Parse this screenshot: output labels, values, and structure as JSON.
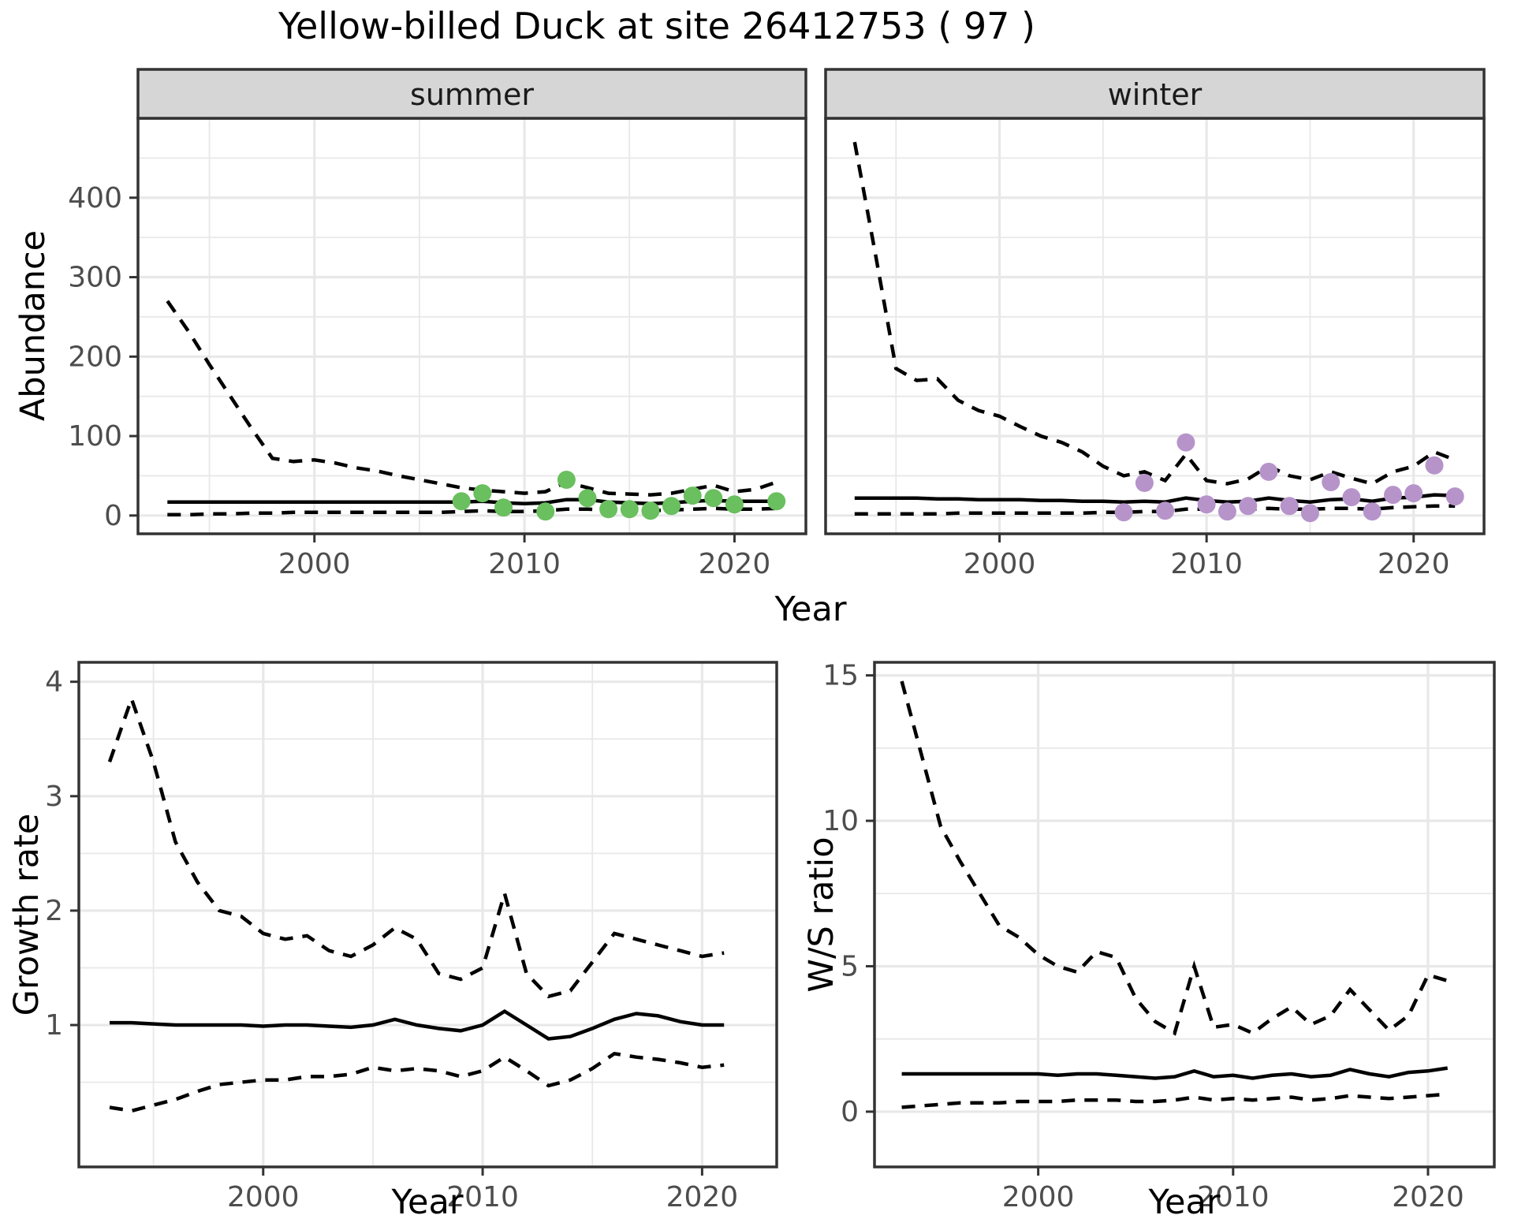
{
  "title": "Yellow-billed Duck at site 26412753 ( 97 )",
  "labels": {
    "top_ylabel": "Abundance",
    "top_xlabel": "Year",
    "growth_ylabel": "Growth rate",
    "growth_xlabel": "Year",
    "ws_ylabel": "W/S ratio",
    "ws_xlabel": "Year"
  },
  "colors": {
    "summer_points": "#6abf5e",
    "winter_points": "#b694ca",
    "line": "#000000",
    "grid": "#e8e8e8",
    "strip_bg": "#d6d6d6",
    "border": "#333333",
    "tick_text": "#4d4d4d",
    "facet_text": "#1a1a1a"
  },
  "chart_data": [
    {
      "id": "abundance_summer",
      "type": "line",
      "facet_label": "summer",
      "ylabel": "Abundance",
      "xlabel": "Year",
      "x_years": [
        1993,
        1994,
        1995,
        1996,
        1997,
        1998,
        1999,
        2000,
        2001,
        2002,
        2003,
        2004,
        2005,
        2006,
        2007,
        2008,
        2009,
        2010,
        2011,
        2012,
        2013,
        2014,
        2015,
        2016,
        2017,
        2018,
        2019,
        2020,
        2021,
        2022
      ],
      "series": [
        {
          "name": "upper_ci",
          "style": "dashed",
          "values": [
            270,
            232,
            190,
            150,
            110,
            72,
            68,
            70,
            66,
            60,
            56,
            50,
            45,
            40,
            35,
            32,
            30,
            28,
            30,
            42,
            35,
            28,
            27,
            26,
            28,
            33,
            38,
            30,
            33,
            42
          ]
        },
        {
          "name": "median",
          "style": "solid",
          "values": [
            17,
            17,
            17,
            17,
            17,
            17,
            17,
            17,
            17,
            17,
            17,
            17,
            17,
            17,
            17,
            18,
            16,
            15,
            16,
            20,
            20,
            17,
            16,
            15,
            16,
            18,
            19,
            18,
            18,
            18
          ]
        },
        {
          "name": "lower_ci",
          "style": "dashed",
          "values": [
            1,
            1,
            2,
            2,
            3,
            3,
            4,
            4,
            4,
            4,
            4,
            4,
            4,
            4,
            5,
            6,
            5,
            5,
            6,
            8,
            8,
            7,
            6,
            6,
            7,
            8,
            9,
            8,
            8,
            9
          ]
        }
      ],
      "observed_points": {
        "color": "#6abf5e",
        "x": [
          2007,
          2008,
          2009,
          2011,
          2012,
          2013,
          2014,
          2015,
          2016,
          2017,
          2018,
          2019,
          2020,
          2022
        ],
        "y": [
          18,
          28,
          10,
          5,
          45,
          22,
          8,
          8,
          6,
          12,
          25,
          22,
          14,
          18
        ]
      },
      "xlim": [
        1991.6,
        2023.4
      ],
      "ylim": [
        -23,
        500
      ],
      "xticks": [
        2000,
        2010,
        2020
      ],
      "yticks": [
        0,
        100,
        200,
        300,
        400
      ],
      "xminor": [
        1995,
        2005,
        2015
      ],
      "yminor": [
        50,
        150,
        250,
        350,
        450
      ],
      "grid": true
    },
    {
      "id": "abundance_winter",
      "type": "line",
      "facet_label": "winter",
      "ylabel": "Abundance",
      "xlabel": "Year",
      "x_years": [
        1993,
        1994,
        1995,
        1996,
        1997,
        1998,
        1999,
        2000,
        2001,
        2002,
        2003,
        2004,
        2005,
        2006,
        2007,
        2008,
        2009,
        2010,
        2011,
        2012,
        2013,
        2014,
        2015,
        2016,
        2017,
        2018,
        2019,
        2020,
        2021,
        2022
      ],
      "series": [
        {
          "name": "upper_ci",
          "style": "dashed",
          "values": [
            470,
            330,
            185,
            170,
            172,
            145,
            132,
            125,
            112,
            100,
            92,
            80,
            62,
            50,
            55,
            44,
            77,
            44,
            40,
            46,
            62,
            50,
            45,
            55,
            47,
            40,
            55,
            62,
            80,
            70
          ]
        },
        {
          "name": "median",
          "style": "solid",
          "values": [
            22,
            22,
            22,
            22,
            21,
            21,
            20,
            20,
            20,
            19,
            19,
            18,
            18,
            17,
            18,
            17,
            22,
            19,
            17,
            18,
            22,
            19,
            17,
            20,
            21,
            18,
            22,
            23,
            26,
            25
          ]
        },
        {
          "name": "lower_ci",
          "style": "dashed",
          "values": [
            2,
            2,
            2,
            2,
            2,
            3,
            3,
            3,
            3,
            3,
            3,
            3,
            4,
            4,
            5,
            5,
            8,
            8,
            7,
            8,
            9,
            8,
            8,
            9,
            9,
            8,
            10,
            11,
            12,
            12
          ]
        }
      ],
      "observed_points": {
        "color": "#b694ca",
        "x": [
          2006,
          2007,
          2008,
          2009,
          2010,
          2011,
          2012,
          2013,
          2014,
          2015,
          2016,
          2017,
          2018,
          2019,
          2020,
          2021,
          2022
        ],
        "y": [
          4,
          41,
          6,
          92,
          14,
          5,
          12,
          55,
          12,
          3,
          42,
          23,
          5,
          26,
          28,
          63,
          24
        ]
      },
      "xlim": [
        1991.6,
        2023.4
      ],
      "ylim": [
        -23,
        500
      ],
      "xticks": [
        2000,
        2010,
        2020
      ],
      "yticks": [
        0,
        100,
        200,
        300,
        400
      ],
      "xminor": [
        1995,
        2005,
        2015
      ],
      "yminor": [
        50,
        150,
        250,
        350,
        450
      ],
      "grid": true
    },
    {
      "id": "growth_rate",
      "type": "line",
      "facet_label": null,
      "ylabel": "Growth rate",
      "xlabel": "Year",
      "x_years": [
        1993,
        1994,
        1995,
        1996,
        1997,
        1998,
        1999,
        2000,
        2001,
        2002,
        2003,
        2004,
        2005,
        2006,
        2007,
        2008,
        2009,
        2010,
        2011,
        2012,
        2013,
        2014,
        2015,
        2016,
        2017,
        2018,
        2019,
        2020,
        2021
      ],
      "series": [
        {
          "name": "upper_ci",
          "style": "dashed",
          "values": [
            3.3,
            3.85,
            3.3,
            2.6,
            2.25,
            2.0,
            1.95,
            1.8,
            1.75,
            1.78,
            1.65,
            1.6,
            1.7,
            1.85,
            1.75,
            1.45,
            1.4,
            1.5,
            2.15,
            1.45,
            1.25,
            1.3,
            1.55,
            1.8,
            1.75,
            1.7,
            1.65,
            1.6,
            1.63
          ]
        },
        {
          "name": "median",
          "style": "solid",
          "values": [
            1.02,
            1.02,
            1.01,
            1.0,
            1.0,
            1.0,
            1.0,
            0.99,
            1.0,
            1.0,
            0.99,
            0.98,
            1.0,
            1.05,
            1.0,
            0.97,
            0.95,
            1.0,
            1.12,
            1.0,
            0.88,
            0.9,
            0.97,
            1.05,
            1.1,
            1.08,
            1.03,
            1.0,
            1.0
          ]
        },
        {
          "name": "lower_ci",
          "style": "dashed",
          "values": [
            0.28,
            0.25,
            0.3,
            0.35,
            0.42,
            0.48,
            0.5,
            0.52,
            0.52,
            0.55,
            0.55,
            0.57,
            0.63,
            0.6,
            0.62,
            0.6,
            0.55,
            0.6,
            0.72,
            0.6,
            0.47,
            0.52,
            0.62,
            0.75,
            0.72,
            0.7,
            0.67,
            0.63,
            0.65
          ]
        }
      ],
      "observed_points": null,
      "xlim": [
        1991.6,
        2023.4
      ],
      "ylim": [
        -0.24,
        4.17
      ],
      "xticks": [
        2000,
        2010,
        2020
      ],
      "yticks": [
        1,
        2,
        3,
        4
      ],
      "xminor": [
        1995,
        2005,
        2015
      ],
      "yminor": [
        0.5,
        1.5,
        2.5,
        3.5
      ],
      "grid": true
    },
    {
      "id": "ws_ratio",
      "type": "line",
      "facet_label": null,
      "ylabel": "W/S ratio",
      "xlabel": "Year",
      "x_years": [
        1993,
        1994,
        1995,
        1996,
        1997,
        1998,
        1999,
        2000,
        2001,
        2002,
        2003,
        2004,
        2005,
        2006,
        2007,
        2008,
        2009,
        2010,
        2011,
        2012,
        2013,
        2014,
        2015,
        2016,
        2017,
        2018,
        2019,
        2020,
        2021
      ],
      "series": [
        {
          "name": "upper_ci",
          "style": "dashed",
          "values": [
            14.8,
            12.3,
            9.8,
            8.6,
            7.5,
            6.4,
            6.0,
            5.4,
            5.0,
            4.8,
            5.5,
            5.3,
            3.9,
            3.1,
            2.7,
            5.0,
            2.9,
            3.0,
            2.7,
            3.2,
            3.6,
            3.0,
            3.3,
            4.2,
            3.5,
            2.8,
            3.3,
            4.7,
            4.5
          ]
        },
        {
          "name": "median",
          "style": "solid",
          "values": [
            1.3,
            1.3,
            1.3,
            1.3,
            1.3,
            1.3,
            1.3,
            1.3,
            1.25,
            1.3,
            1.3,
            1.25,
            1.2,
            1.15,
            1.2,
            1.4,
            1.2,
            1.25,
            1.15,
            1.25,
            1.3,
            1.2,
            1.25,
            1.45,
            1.3,
            1.2,
            1.35,
            1.4,
            1.5
          ]
        },
        {
          "name": "lower_ci",
          "style": "dashed",
          "values": [
            0.15,
            0.2,
            0.25,
            0.3,
            0.3,
            0.3,
            0.35,
            0.35,
            0.35,
            0.4,
            0.4,
            0.4,
            0.35,
            0.35,
            0.4,
            0.5,
            0.4,
            0.45,
            0.4,
            0.45,
            0.5,
            0.4,
            0.45,
            0.55,
            0.5,
            0.45,
            0.5,
            0.55,
            0.6
          ]
        }
      ],
      "observed_points": null,
      "xlim": [
        1991.6,
        2023.4
      ],
      "ylim": [
        -1.9,
        15.45
      ],
      "xticks": [
        2000,
        2010,
        2020
      ],
      "yticks": [
        0,
        5,
        10,
        15
      ],
      "xminor": [
        2.5
      ],
      "yminor": [
        2.5,
        7.5,
        12.5
      ],
      "grid": true
    }
  ]
}
